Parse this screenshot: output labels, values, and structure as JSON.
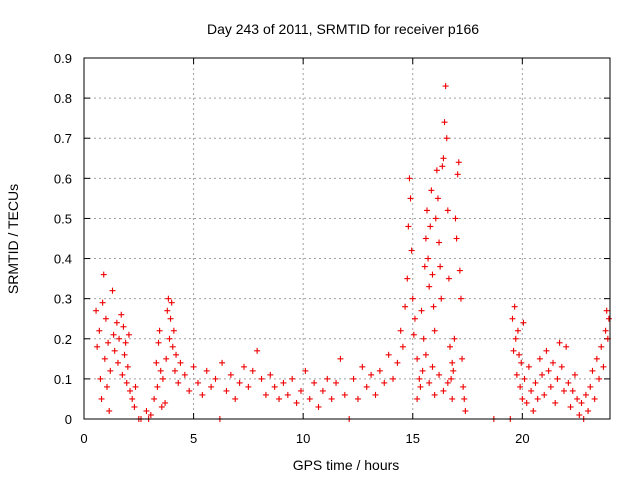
{
  "chart_data": {
    "type": "scatter",
    "title": "Day 243 of 2011, SRMTID for receiver p166",
    "xlabel": "GPS time / hours",
    "ylabel": "SRMTID / TECUs",
    "xlim": [
      0,
      24
    ],
    "ylim": [
      0,
      0.9
    ],
    "xticks": [
      0,
      5,
      10,
      15,
      20
    ],
    "xtick_labels": [
      "0",
      "5",
      "10",
      "15",
      "20"
    ],
    "yticks": [
      0,
      0.1,
      0.2,
      0.3,
      0.4,
      0.5,
      0.6,
      0.7,
      0.8,
      0.9
    ],
    "ytick_labels": [
      "0",
      "0.1",
      "0.2",
      "0.3",
      "0.4",
      "0.5",
      "0.6",
      "0.7",
      "0.8",
      "0.9"
    ],
    "grid": true,
    "marker": "+",
    "marker_color": "#ee0000",
    "series": [
      {
        "name": "SRMTID",
        "points": [
          [
            0.55,
            0.27
          ],
          [
            0.6,
            0.18
          ],
          [
            0.7,
            0.22
          ],
          [
            0.75,
            0.1
          ],
          [
            0.8,
            0.05
          ],
          [
            0.85,
            0.29
          ],
          [
            0.9,
            0.36
          ],
          [
            0.95,
            0.15
          ],
          [
            1.0,
            0.25
          ],
          [
            1.05,
            0.08
          ],
          [
            1.1,
            0.19
          ],
          [
            1.15,
            0.02
          ],
          [
            1.2,
            0.12
          ],
          [
            1.3,
            0.32
          ],
          [
            1.35,
            0.21
          ],
          [
            1.4,
            0.17
          ],
          [
            1.5,
            0.24
          ],
          [
            1.55,
            0.14
          ],
          [
            1.6,
            0.2
          ],
          [
            1.7,
            0.26
          ],
          [
            1.75,
            0.11
          ],
          [
            1.8,
            0.23
          ],
          [
            1.85,
            0.16
          ],
          [
            1.9,
            0.19
          ],
          [
            1.95,
            0.09
          ],
          [
            2.0,
            0.13
          ],
          [
            2.05,
            0.21
          ],
          [
            2.1,
            0.07
          ],
          [
            2.2,
            0.05
          ],
          [
            2.3,
            0.03
          ],
          [
            2.35,
            0.08
          ],
          [
            2.5,
            0.0
          ],
          [
            2.6,
            0.0
          ],
          [
            2.85,
            0.02
          ],
          [
            2.95,
            0.0
          ],
          [
            3.05,
            0.01
          ],
          [
            3.2,
            0.05
          ],
          [
            3.3,
            0.14
          ],
          [
            3.35,
            0.08
          ],
          [
            3.4,
            0.19
          ],
          [
            3.45,
            0.22
          ],
          [
            3.5,
            0.12
          ],
          [
            3.55,
            0.03
          ],
          [
            3.6,
            0.1
          ],
          [
            3.7,
            0.04
          ],
          [
            3.75,
            0.15
          ],
          [
            3.8,
            0.27
          ],
          [
            3.85,
            0.3
          ],
          [
            3.9,
            0.2
          ],
          [
            3.95,
            0.25
          ],
          [
            4.0,
            0.29
          ],
          [
            4.05,
            0.18
          ],
          [
            4.1,
            0.22
          ],
          [
            4.15,
            0.12
          ],
          [
            4.2,
            0.16
          ],
          [
            4.3,
            0.09
          ],
          [
            4.4,
            0.14
          ],
          [
            4.6,
            0.11
          ],
          [
            4.8,
            0.07
          ],
          [
            5.0,
            0.13
          ],
          [
            5.2,
            0.09
          ],
          [
            5.4,
            0.06
          ],
          [
            5.6,
            0.12
          ],
          [
            5.8,
            0.08
          ],
          [
            6.0,
            0.1
          ],
          [
            6.2,
            0.0
          ],
          [
            6.3,
            0.14
          ],
          [
            6.5,
            0.07
          ],
          [
            6.7,
            0.11
          ],
          [
            6.9,
            0.05
          ],
          [
            7.1,
            0.09
          ],
          [
            7.3,
            0.13
          ],
          [
            7.5,
            0.08
          ],
          [
            7.7,
            0.12
          ],
          [
            7.9,
            0.17
          ],
          [
            8.1,
            0.1
          ],
          [
            8.3,
            0.06
          ],
          [
            8.5,
            0.11
          ],
          [
            8.7,
            0.08
          ],
          [
            8.9,
            0.05
          ],
          [
            9.1,
            0.09
          ],
          [
            9.3,
            0.06
          ],
          [
            9.5,
            0.1
          ],
          [
            9.7,
            0.04
          ],
          [
            9.9,
            0.07
          ],
          [
            10.1,
            0.12
          ],
          [
            10.3,
            0.05
          ],
          [
            10.5,
            0.09
          ],
          [
            10.7,
            0.03
          ],
          [
            10.9,
            0.07
          ],
          [
            11.1,
            0.1
          ],
          [
            11.3,
            0.05
          ],
          [
            11.5,
            0.09
          ],
          [
            11.7,
            0.15
          ],
          [
            11.9,
            0.06
          ],
          [
            12.1,
            0.0
          ],
          [
            12.3,
            0.1
          ],
          [
            12.5,
            0.05
          ],
          [
            12.7,
            0.13
          ],
          [
            12.9,
            0.08
          ],
          [
            13.1,
            0.11
          ],
          [
            13.3,
            0.06
          ],
          [
            13.5,
            0.12
          ],
          [
            13.7,
            0.09
          ],
          [
            13.9,
            0.16
          ],
          [
            14.1,
            0.1
          ],
          [
            14.3,
            0.14
          ],
          [
            14.45,
            0.22
          ],
          [
            14.55,
            0.18
          ],
          [
            14.65,
            0.28
          ],
          [
            14.75,
            0.35
          ],
          [
            14.8,
            0.48
          ],
          [
            14.85,
            0.6
          ],
          [
            14.9,
            0.55
          ],
          [
            14.95,
            0.42
          ],
          [
            15.0,
            0.3
          ],
          [
            15.05,
            0.21
          ],
          [
            15.1,
            0.25
          ],
          [
            15.2,
            0.15
          ],
          [
            15.3,
            0.1
          ],
          [
            15.4,
            0.27
          ],
          [
            15.5,
            0.2
          ],
          [
            15.55,
            0.38
          ],
          [
            15.6,
            0.45
          ],
          [
            15.65,
            0.52
          ],
          [
            15.7,
            0.4
          ],
          [
            15.75,
            0.33
          ],
          [
            15.8,
            0.48
          ],
          [
            15.85,
            0.57
          ],
          [
            15.9,
            0.36
          ],
          [
            15.95,
            0.28
          ],
          [
            16.0,
            0.22
          ],
          [
            16.05,
            0.5
          ],
          [
            16.1,
            0.62
          ],
          [
            16.15,
            0.55
          ],
          [
            16.2,
            0.44
          ],
          [
            16.25,
            0.38
          ],
          [
            16.3,
            0.3
          ],
          [
            16.35,
            0.63
          ],
          [
            16.4,
            0.65
          ],
          [
            16.45,
            0.74
          ],
          [
            16.5,
            0.83
          ],
          [
            16.55,
            0.7
          ],
          [
            16.6,
            0.52
          ],
          [
            16.65,
            0.35
          ],
          [
            16.7,
            0.18
          ],
          [
            16.75,
            0.1
          ],
          [
            16.8,
            0.05
          ],
          [
            16.85,
            0.12
          ],
          [
            16.9,
            0.2
          ],
          [
            16.95,
            0.5
          ],
          [
            17.0,
            0.45
          ],
          [
            17.05,
            0.61
          ],
          [
            17.1,
            0.64
          ],
          [
            17.15,
            0.37
          ],
          [
            17.2,
            0.3
          ],
          [
            17.25,
            0.15
          ],
          [
            17.3,
            0.08
          ],
          [
            17.35,
            0.05
          ],
          [
            17.4,
            0.02
          ],
          [
            15.2,
            0.05
          ],
          [
            15.35,
            0.08
          ],
          [
            15.45,
            0.12
          ],
          [
            15.6,
            0.16
          ],
          [
            15.75,
            0.09
          ],
          [
            15.9,
            0.13
          ],
          [
            16.0,
            0.06
          ],
          [
            16.2,
            0.11
          ],
          [
            16.4,
            0.07
          ],
          [
            16.6,
            0.09
          ],
          [
            16.8,
            0.14
          ],
          [
            18.7,
            0.0
          ],
          [
            19.45,
            0.0
          ],
          [
            19.55,
            0.25
          ],
          [
            19.6,
            0.17
          ],
          [
            19.65,
            0.28
          ],
          [
            19.7,
            0.2
          ],
          [
            19.75,
            0.11
          ],
          [
            19.8,
            0.22
          ],
          [
            19.85,
            0.16
          ],
          [
            19.9,
            0.08
          ],
          [
            19.95,
            0.14
          ],
          [
            20.0,
            0.05
          ],
          [
            20.05,
            0.24
          ],
          [
            20.1,
            0.1
          ],
          [
            20.2,
            0.04
          ],
          [
            20.3,
            0.13
          ],
          [
            20.4,
            0.07
          ],
          [
            20.5,
            0.02
          ],
          [
            20.6,
            0.09
          ],
          [
            20.7,
            0.05
          ],
          [
            20.8,
            0.15
          ],
          [
            20.9,
            0.11
          ],
          [
            21.0,
            0.06
          ],
          [
            21.1,
            0.17
          ],
          [
            21.2,
            0.12
          ],
          [
            21.3,
            0.08
          ],
          [
            21.4,
            0.14
          ],
          [
            21.5,
            0.04
          ],
          [
            21.6,
            0.1
          ],
          [
            21.7,
            0.19
          ],
          [
            21.8,
            0.13
          ],
          [
            21.9,
            0.07
          ],
          [
            22.0,
            0.18
          ],
          [
            22.1,
            0.09
          ],
          [
            22.2,
            0.03
          ],
          [
            22.3,
            0.07
          ],
          [
            22.4,
            0.11
          ],
          [
            22.5,
            0.05
          ],
          [
            22.6,
            0.01
          ],
          [
            22.7,
            0.04
          ],
          [
            22.8,
            0.0
          ],
          [
            22.9,
            0.06
          ],
          [
            23.0,
            0.02
          ],
          [
            23.1,
            0.08
          ],
          [
            23.2,
            0.12
          ],
          [
            23.3,
            0.05
          ],
          [
            23.4,
            0.15
          ],
          [
            23.5,
            0.1
          ],
          [
            23.6,
            0.18
          ],
          [
            23.7,
            0.13
          ],
          [
            23.8,
            0.22
          ],
          [
            23.85,
            0.27
          ],
          [
            23.9,
            0.2
          ],
          [
            23.95,
            0.25
          ]
        ]
      }
    ]
  }
}
